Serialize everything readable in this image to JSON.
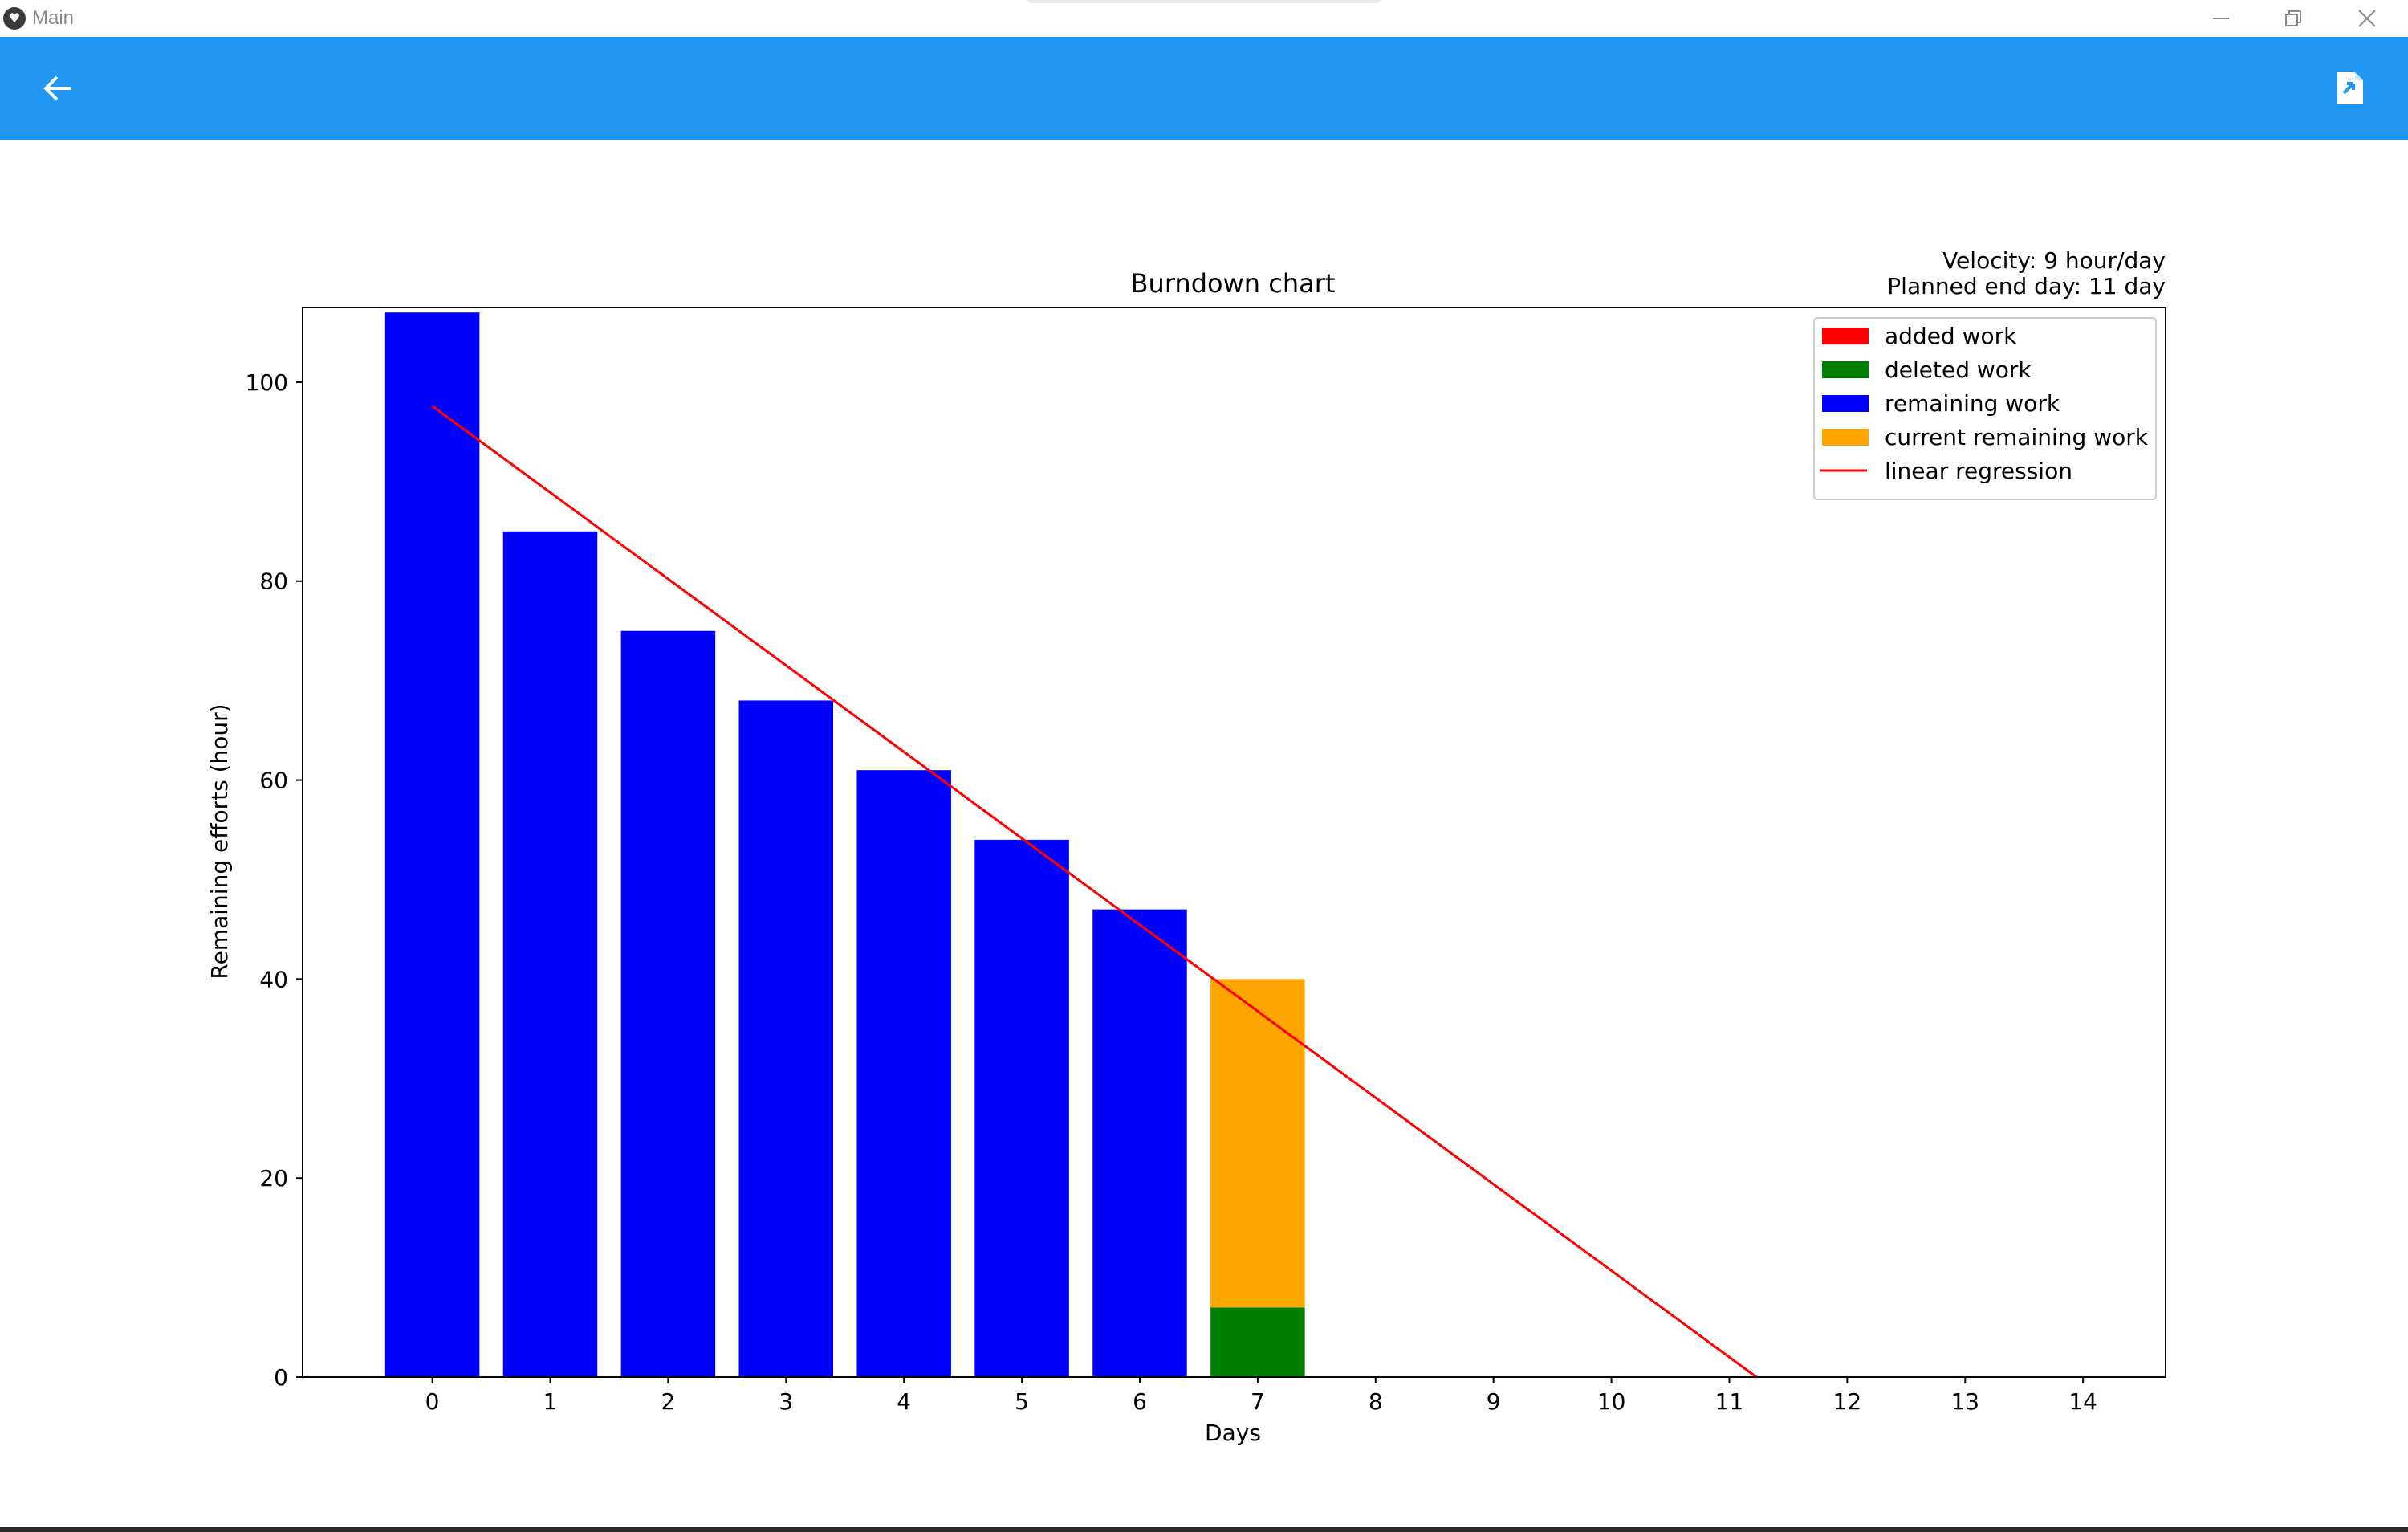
{
  "window": {
    "title": "Main",
    "logo_glyph": "♥"
  },
  "appbar": {
    "color": "#2196f3",
    "back_icon": "arrow-left-icon",
    "export_icon": "file-export-icon"
  },
  "chart_data": {
    "type": "bar",
    "title": "Burndown chart",
    "xlabel": "Days",
    "ylabel": "Remaining efforts (hour)",
    "annotations": [
      "Velocity: 9 hour/day",
      "Planned end day: 11 day"
    ],
    "categories": [
      "0",
      "1",
      "2",
      "3",
      "4",
      "5",
      "6",
      "7",
      "8",
      "9",
      "10",
      "11",
      "12",
      "13",
      "14"
    ],
    "xlim": [
      -1.1,
      14.7
    ],
    "ylim": [
      0,
      107.5
    ],
    "yticks": [
      0,
      20,
      40,
      60,
      80,
      100
    ],
    "grid": false,
    "legend_position": "top-right",
    "series": [
      {
        "name": "added work",
        "color": "#ff0000",
        "kind": "bar",
        "values": [
          0,
          0,
          0,
          0,
          0,
          0,
          0,
          0,
          0,
          0,
          0,
          0,
          0,
          0,
          0
        ]
      },
      {
        "name": "deleted work",
        "color": "#008000",
        "kind": "bar",
        "values": [
          0,
          0,
          0,
          0,
          0,
          0,
          0,
          7,
          0,
          0,
          0,
          0,
          0,
          0,
          0
        ]
      },
      {
        "name": "remaining work",
        "color": "#0000ff",
        "kind": "bar",
        "values": [
          107,
          85,
          75,
          68,
          61,
          54,
          47,
          0,
          0,
          0,
          0,
          0,
          0,
          0,
          0
        ]
      },
      {
        "name": "current remaining work",
        "color": "#ffa500",
        "kind": "bar",
        "stack_on": "deleted work",
        "values": [
          0,
          0,
          0,
          0,
          0,
          0,
          0,
          33,
          0,
          0,
          0,
          0,
          0,
          0,
          0
        ]
      },
      {
        "name": "linear regression",
        "color": "#ff0000",
        "kind": "line",
        "points": [
          [
            0,
            97.6
          ],
          [
            11.23,
            0
          ]
        ]
      }
    ]
  }
}
